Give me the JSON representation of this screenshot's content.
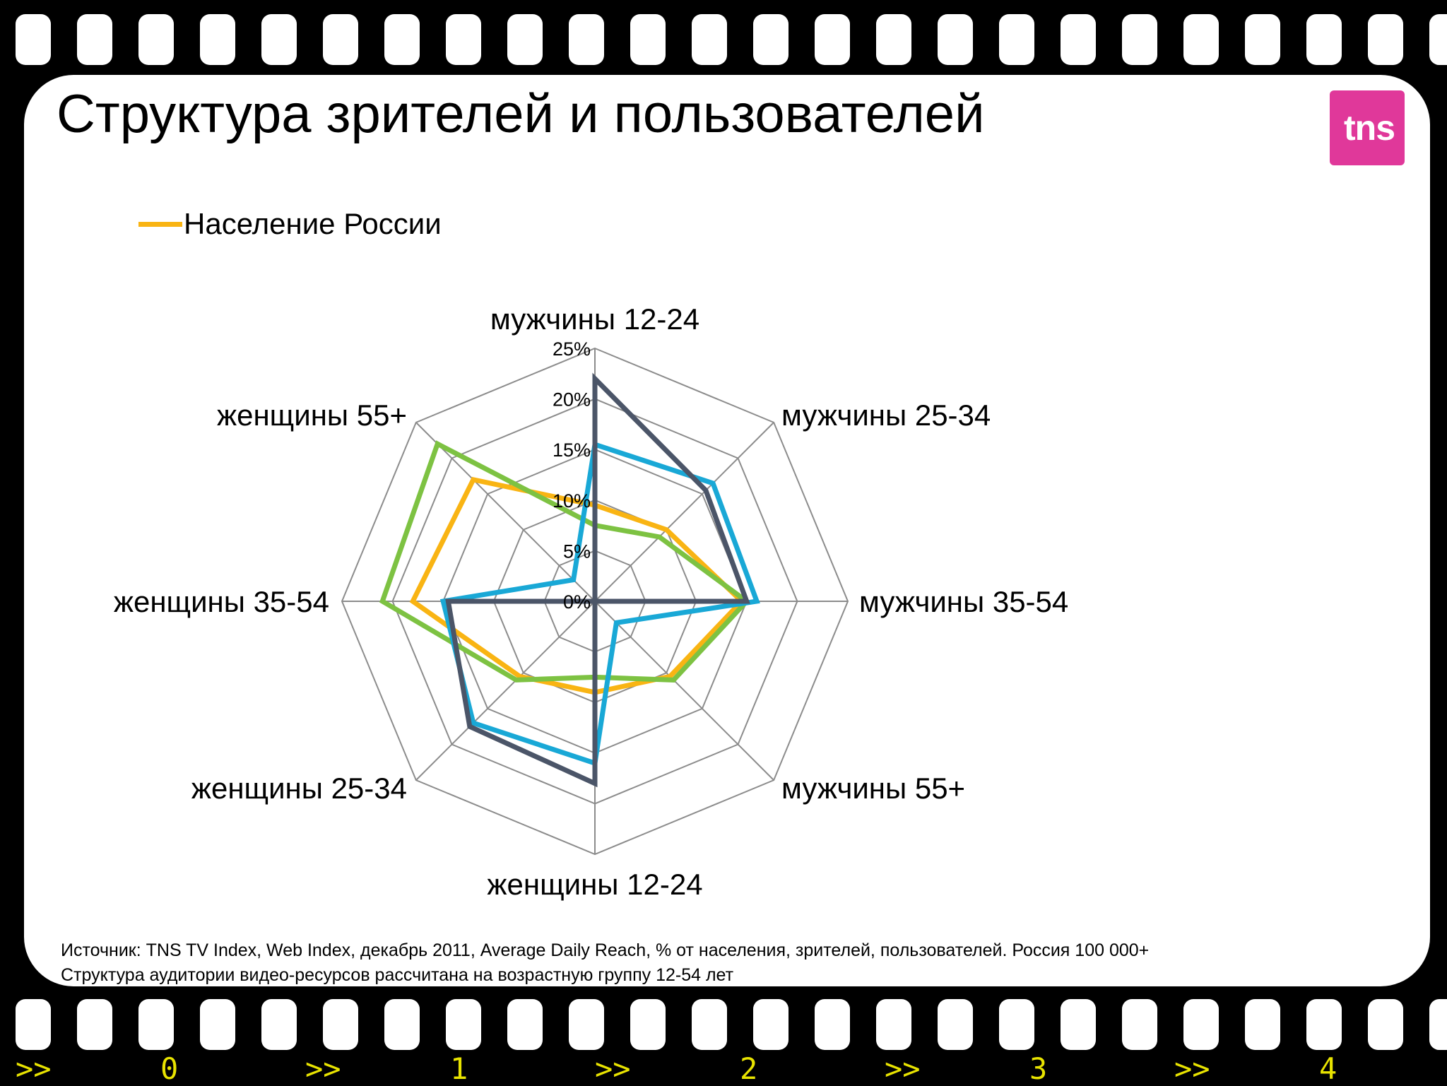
{
  "slide": {
    "title": "Структура зрителей и пользователей",
    "logo_text": "tns",
    "source_line1": "Источник: TNS TV Index, Web Index, декабрь 2011, Average Daily Reach, % от населения, зрителей, пользователей. Россия 100 000+",
    "source_line2": "Структура аудитории видео-ресурсов рассчитана на возрастную группу 12-54 лет"
  },
  "colors": {
    "background": "#000000",
    "slide": "#ffffff",
    "logo": "#e0389a",
    "film_text": "#e8e300",
    "grid": "#8c8c8c"
  },
  "film_strip": {
    "labels": [
      ">>",
      "0",
      ">>",
      "1",
      ">>",
      "2",
      ">>",
      "3",
      ">>",
      "4",
      ">>"
    ]
  },
  "chart_data": {
    "type": "radar",
    "axes": [
      "мужчины 12-24",
      "мужчины 25-34",
      "мужчины 35-54",
      "мужчины 55+",
      "женщины 12-24",
      "женщины 25-34",
      "женщины 35-54",
      "женщины 55+"
    ],
    "ticks": [
      "0%",
      "5%",
      "10%",
      "15%",
      "20%",
      "25%"
    ],
    "rlim": [
      0,
      25
    ],
    "grid": true,
    "legend_position": "top-left",
    "series": [
      {
        "name": "Население России",
        "color": "#f9b413",
        "values": [
          9.5,
          10,
          14.5,
          10.5,
          9,
          10.5,
          18,
          17
        ]
      },
      {
        "color": "#7dc242",
        "values": [
          7.5,
          9,
          15,
          11,
          7.5,
          11,
          21,
          22
        ]
      },
      {
        "color": "#19a8d6",
        "values": [
          15.5,
          16.5,
          16,
          3,
          16,
          17,
          15,
          3
        ]
      },
      {
        "color": "#4b5568",
        "values": [
          22,
          15.5,
          15,
          0,
          18,
          17.5,
          14.5,
          0
        ]
      }
    ]
  }
}
